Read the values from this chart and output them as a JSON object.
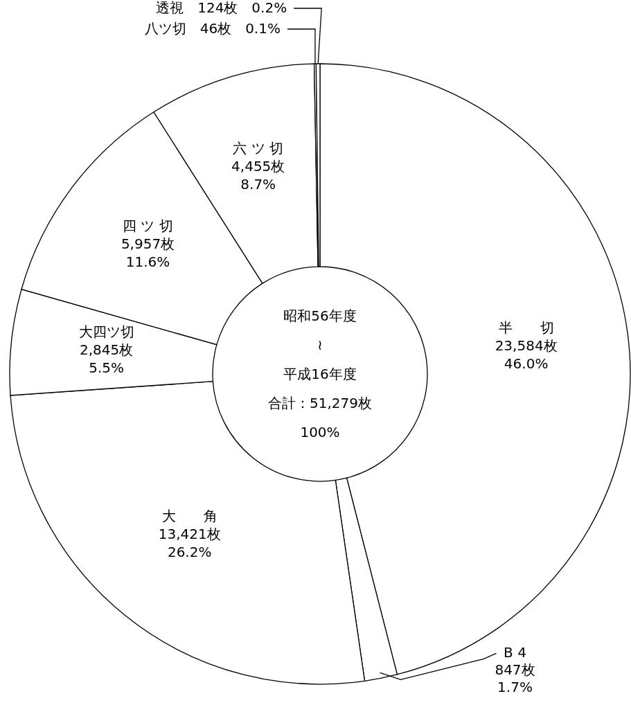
{
  "chart_data": {
    "type": "donut",
    "categories": [
      "半　　切",
      "B 4",
      "大　　角",
      "大四ツ切",
      "四 ツ 切",
      "六 ツ 切",
      "八ツ切",
      "透視"
    ],
    "values": [
      46.0,
      1.7,
      26.2,
      5.5,
      11.6,
      8.7,
      0.1,
      0.2
    ],
    "value_labels": [
      [
        "23,584枚",
        "46.0%"
      ],
      [
        "847枚",
        "1.7%"
      ],
      [
        "13,421枚",
        "26.2%"
      ],
      [
        "2,845枚",
        "5.5%"
      ],
      [
        "5,957枚",
        "11.6%"
      ],
      [
        "4,455枚",
        "8.7%"
      ],
      [
        "46枚",
        "0.1%"
      ],
      [
        "124枚",
        "0.2%"
      ]
    ],
    "colors": [
      "#ffffff",
      "#ffffff",
      "#ffffff",
      "#ffffff",
      "#ffffff",
      "#ffffff",
      "#ffffff",
      "#ffffff"
    ],
    "annotations": [
      "昭和56年度",
      "≀",
      "平成16年度",
      "合計：51,279枚",
      "100%"
    ]
  }
}
